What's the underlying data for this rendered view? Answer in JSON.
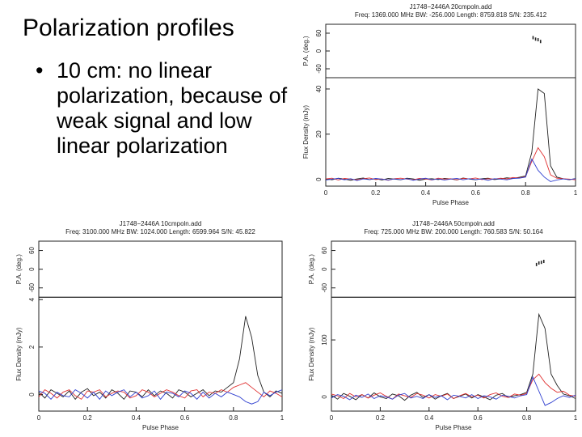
{
  "slide": {
    "title": "Polarization profiles",
    "bullet": "10 cm: no linear polarization, because of weak signal and low linear polarization"
  },
  "chart_data": [
    {
      "type": "line",
      "title": "J1748−2446A 20cmpoln.add",
      "subtitle": "Freq: 1369.000 MHz BW: -256.000 Length: 8759.818 S/N: 235.412",
      "xlabel": "Pulse Phase",
      "ylabel": "Flux Density (mJy)",
      "pa_ylabel": "P.A. (deg.)",
      "x": [
        0,
        0.025,
        0.05,
        0.075,
        0.1,
        0.125,
        0.15,
        0.175,
        0.2,
        0.225,
        0.25,
        0.275,
        0.3,
        0.325,
        0.35,
        0.375,
        0.4,
        0.425,
        0.45,
        0.475,
        0.5,
        0.525,
        0.55,
        0.575,
        0.6,
        0.625,
        0.65,
        0.675,
        0.7,
        0.725,
        0.75,
        0.775,
        0.8,
        0.825,
        0.85,
        0.875,
        0.9,
        0.925,
        0.95,
        0.975,
        1
      ],
      "series": [
        {
          "color": "#222222",
          "values": [
            0.3,
            -0.2,
            0.5,
            0.1,
            -0.4,
            0.2,
            0.6,
            -0.1,
            0.3,
            -0.3,
            0.4,
            0.1,
            -0.2,
            0.5,
            0.2,
            -0.4,
            0.1,
            0.3,
            -0.1,
            0.4,
            0.2,
            -0.3,
            0.6,
            0.1,
            -0.2,
            0.3,
            0.5,
            -0.1,
            0.2,
            0.7,
            0.4,
            0.9,
            1.5,
            12,
            40,
            38,
            6,
            1,
            0.3,
            -0.2,
            0.4
          ]
        },
        {
          "color": "#e03030",
          "values": [
            0.2,
            0.5,
            -0.3,
            0.4,
            0.1,
            -0.2,
            0.3,
            0.6,
            -0.1,
            0.2,
            -0.4,
            0.3,
            0.5,
            0.1,
            -0.2,
            0.4,
            0.2,
            -0.3,
            0.5,
            0.1,
            0.3,
            -0.2,
            0.4,
            0.2,
            0.6,
            -0.1,
            0.3,
            0.1,
            0.5,
            0.2,
            0.8,
            0.6,
            1.2,
            8,
            14,
            10,
            2,
            0.5,
            0.3,
            0.1,
            -0.2
          ]
        },
        {
          "color": "#3040d0",
          "values": [
            -0.3,
            0.1,
            0.4,
            -0.2,
            0.3,
            -0.5,
            0.2,
            -0.1,
            0.4,
            0.1,
            -0.3,
            0.2,
            -0.1,
            0.3,
            -0.4,
            0.1,
            0.5,
            -0.2,
            0.2,
            -0.3,
            0.1,
            0.4,
            -0.2,
            0.3,
            -0.1,
            0.2,
            -0.4,
            0.3,
            0.1,
            -0.2,
            0.4,
            0.5,
            1,
            9,
            4,
            1,
            -1,
            -0.3,
            0.2,
            -0.1,
            0.3
          ]
        }
      ],
      "xlim": [
        0,
        1
      ],
      "xticks": [
        0,
        0.2,
        0.4,
        0.6,
        0.8,
        1
      ],
      "ylim": [
        -3,
        45
      ],
      "yticks": [
        0,
        20,
        40
      ],
      "pa": {
        "x": [
          0.83,
          0.84,
          0.85,
          0.86
        ],
        "values": [
          45,
          40,
          38,
          32
        ],
        "ylim": [
          -90,
          90
        ],
        "yticks": [
          -60,
          0,
          60
        ]
      }
    },
    {
      "type": "line",
      "title": "J1748−2446A 10cmpoln.add",
      "subtitle": "Freq: 3100.000 MHz BW: 1024.000 Length: 6599.964 S/N: 45.822",
      "xlabel": "Pulse Phase",
      "ylabel": "Flux Density (mJy)",
      "pa_ylabel": "P.A. (deg.)",
      "x": [
        0,
        0.025,
        0.05,
        0.075,
        0.1,
        0.125,
        0.15,
        0.175,
        0.2,
        0.225,
        0.25,
        0.275,
        0.3,
        0.325,
        0.35,
        0.375,
        0.4,
        0.425,
        0.45,
        0.475,
        0.5,
        0.525,
        0.55,
        0.575,
        0.6,
        0.625,
        0.65,
        0.675,
        0.7,
        0.725,
        0.75,
        0.775,
        0.8,
        0.825,
        0.85,
        0.875,
        0.9,
        0.925,
        0.95,
        0.975,
        1
      ],
      "series": [
        {
          "color": "#222222",
          "values": [
            0.1,
            -0.15,
            0.2,
            0.05,
            -0.1,
            0.15,
            -0.2,
            0.1,
            0.25,
            -0.05,
            0.1,
            -0.15,
            0.2,
            0.05,
            -0.2,
            0.15,
            0.1,
            -0.1,
            0.2,
            -0.05,
            0.15,
            0.05,
            -0.15,
            0.2,
            0.1,
            -0.1,
            0.05,
            0.2,
            -0.05,
            0.15,
            0.1,
            0.3,
            0.5,
            1.5,
            3.3,
            2.4,
            0.8,
            0.1,
            -0.1,
            0.15,
            0.05
          ]
        },
        {
          "color": "#e03030",
          "values": [
            -0.1,
            0.2,
            0.05,
            -0.15,
            0.1,
            0.2,
            -0.05,
            -0.2,
            0.15,
            0.1,
            0.2,
            -0.1,
            0.05,
            0.15,
            0.1,
            -0.15,
            -0.05,
            0.2,
            0.1,
            -0.1,
            0.05,
            0.2,
            0.1,
            -0.05,
            -0.15,
            0.15,
            0.2,
            -0.1,
            0.1,
            0.05,
            0.2,
            0.1,
            0.3,
            0.4,
            0.5,
            0.3,
            0.1,
            -0.1,
            0.15,
            0.05,
            -0.1
          ]
        },
        {
          "color": "#3040d0",
          "values": [
            0.15,
            0.05,
            -0.2,
            0.1,
            -0.05,
            -0.1,
            0.2,
            0.05,
            -0.15,
            0.1,
            -0.2,
            0.15,
            -0.05,
            0.1,
            0.2,
            -0.1,
            0.1,
            -0.15,
            -0.05,
            0.15,
            -0.2,
            0.1,
            0.05,
            -0.1,
            0.15,
            0.05,
            -0.2,
            0.1,
            -0.15,
            0.05,
            -0.1,
            0.1,
            0,
            -0.1,
            -0.3,
            -0.4,
            -0.3,
            0.1,
            -0.05,
            0.1,
            0.2
          ]
        }
      ],
      "xlim": [
        0,
        1
      ],
      "xticks": [
        0,
        0.2,
        0.4,
        0.6,
        0.8,
        1
      ],
      "ylim": [
        -0.7,
        4.1
      ],
      "yticks": [
        0,
        2,
        4
      ],
      "pa": {
        "ylim": [
          -90,
          90
        ],
        "yticks": [
          -60,
          0,
          60
        ]
      }
    },
    {
      "type": "line",
      "title": "J1748−2446A 50cmpoln.add",
      "subtitle": "Freq: 725.000 MHz BW: 200.000 Length: 760.583 S/N: 50.164",
      "xlabel": "Pulse Phase",
      "ylabel": "Flux Density (mJy)",
      "pa_ylabel": "P.A. (deg.)",
      "x": [
        0,
        0.025,
        0.05,
        0.075,
        0.1,
        0.125,
        0.15,
        0.175,
        0.2,
        0.225,
        0.25,
        0.275,
        0.3,
        0.325,
        0.35,
        0.375,
        0.4,
        0.425,
        0.45,
        0.475,
        0.5,
        0.525,
        0.55,
        0.575,
        0.6,
        0.625,
        0.65,
        0.675,
        0.7,
        0.725,
        0.75,
        0.775,
        0.8,
        0.825,
        0.85,
        0.875,
        0.9,
        0.925,
        0.95,
        0.975,
        1
      ],
      "series": [
        {
          "color": "#222222",
          "values": [
            3,
            -4,
            6,
            1,
            -5,
            4,
            -2,
            7,
            0,
            -3,
            5,
            2,
            -6,
            3,
            8,
            -1,
            4,
            -4,
            2,
            6,
            -3,
            1,
            5,
            -2,
            4,
            0,
            -5,
            3,
            6,
            -1,
            2,
            4,
            8,
            40,
            145,
            120,
            40,
            20,
            5,
            2,
            -3
          ]
        },
        {
          "color": "#e03030",
          "values": [
            5,
            2,
            -3,
            6,
            0,
            4,
            -2,
            3,
            7,
            1,
            -4,
            5,
            2,
            -1,
            6,
            3,
            -2,
            4,
            1,
            5,
            -3,
            2,
            6,
            0,
            3,
            -2,
            4,
            7,
            1,
            -1,
            5,
            3,
            6,
            30,
            40,
            25,
            15,
            8,
            10,
            3,
            1
          ]
        },
        {
          "color": "#3040d0",
          "values": [
            -2,
            4,
            1,
            -5,
            3,
            -1,
            5,
            -3,
            2,
            0,
            -4,
            3,
            6,
            -2,
            1,
            -3,
            4,
            -1,
            2,
            -5,
            3,
            1,
            -2,
            4,
            -3,
            2,
            0,
            -4,
            3,
            1,
            -2,
            2,
            4,
            35,
            10,
            -15,
            -10,
            -3,
            2,
            -1,
            3
          ]
        }
      ],
      "xlim": [
        0,
        1
      ],
      "xticks": [
        0,
        0.2,
        0.4,
        0.6,
        0.8,
        1
      ],
      "ylim": [
        -25,
        175
      ],
      "yticks": [
        0,
        100
      ],
      "pa": {
        "x": [
          0.84,
          0.85,
          0.86,
          0.87
        ],
        "values": [
          15,
          20,
          22,
          25
        ],
        "ylim": [
          -90,
          90
        ],
        "yticks": [
          -60,
          0,
          60
        ]
      }
    }
  ]
}
